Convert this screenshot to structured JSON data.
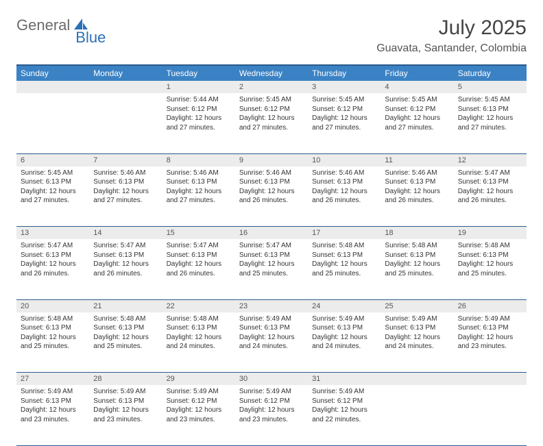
{
  "logo": {
    "general": "General",
    "blue": "Blue"
  },
  "title": "July 2025",
  "location": "Guavata, Santander, Colombia",
  "colors": {
    "header_bg": "#3b82c4",
    "header_border": "#2a5a8a",
    "daynum_bg": "#ececec",
    "text": "#333333",
    "logo_gray": "#6b6b6b",
    "logo_blue": "#2a71b8"
  },
  "weekdays": [
    "Sunday",
    "Monday",
    "Tuesday",
    "Wednesday",
    "Thursday",
    "Friday",
    "Saturday"
  ],
  "weeks": [
    [
      null,
      null,
      {
        "n": "1",
        "sr": "Sunrise: 5:44 AM",
        "ss": "Sunset: 6:12 PM",
        "d1": "Daylight: 12 hours",
        "d2": "and 27 minutes."
      },
      {
        "n": "2",
        "sr": "Sunrise: 5:45 AM",
        "ss": "Sunset: 6:12 PM",
        "d1": "Daylight: 12 hours",
        "d2": "and 27 minutes."
      },
      {
        "n": "3",
        "sr": "Sunrise: 5:45 AM",
        "ss": "Sunset: 6:12 PM",
        "d1": "Daylight: 12 hours",
        "d2": "and 27 minutes."
      },
      {
        "n": "4",
        "sr": "Sunrise: 5:45 AM",
        "ss": "Sunset: 6:12 PM",
        "d1": "Daylight: 12 hours",
        "d2": "and 27 minutes."
      },
      {
        "n": "5",
        "sr": "Sunrise: 5:45 AM",
        "ss": "Sunset: 6:13 PM",
        "d1": "Daylight: 12 hours",
        "d2": "and 27 minutes."
      }
    ],
    [
      {
        "n": "6",
        "sr": "Sunrise: 5:45 AM",
        "ss": "Sunset: 6:13 PM",
        "d1": "Daylight: 12 hours",
        "d2": "and 27 minutes."
      },
      {
        "n": "7",
        "sr": "Sunrise: 5:46 AM",
        "ss": "Sunset: 6:13 PM",
        "d1": "Daylight: 12 hours",
        "d2": "and 27 minutes."
      },
      {
        "n": "8",
        "sr": "Sunrise: 5:46 AM",
        "ss": "Sunset: 6:13 PM",
        "d1": "Daylight: 12 hours",
        "d2": "and 27 minutes."
      },
      {
        "n": "9",
        "sr": "Sunrise: 5:46 AM",
        "ss": "Sunset: 6:13 PM",
        "d1": "Daylight: 12 hours",
        "d2": "and 26 minutes."
      },
      {
        "n": "10",
        "sr": "Sunrise: 5:46 AM",
        "ss": "Sunset: 6:13 PM",
        "d1": "Daylight: 12 hours",
        "d2": "and 26 minutes."
      },
      {
        "n": "11",
        "sr": "Sunrise: 5:46 AM",
        "ss": "Sunset: 6:13 PM",
        "d1": "Daylight: 12 hours",
        "d2": "and 26 minutes."
      },
      {
        "n": "12",
        "sr": "Sunrise: 5:47 AM",
        "ss": "Sunset: 6:13 PM",
        "d1": "Daylight: 12 hours",
        "d2": "and 26 minutes."
      }
    ],
    [
      {
        "n": "13",
        "sr": "Sunrise: 5:47 AM",
        "ss": "Sunset: 6:13 PM",
        "d1": "Daylight: 12 hours",
        "d2": "and 26 minutes."
      },
      {
        "n": "14",
        "sr": "Sunrise: 5:47 AM",
        "ss": "Sunset: 6:13 PM",
        "d1": "Daylight: 12 hours",
        "d2": "and 26 minutes."
      },
      {
        "n": "15",
        "sr": "Sunrise: 5:47 AM",
        "ss": "Sunset: 6:13 PM",
        "d1": "Daylight: 12 hours",
        "d2": "and 26 minutes."
      },
      {
        "n": "16",
        "sr": "Sunrise: 5:47 AM",
        "ss": "Sunset: 6:13 PM",
        "d1": "Daylight: 12 hours",
        "d2": "and 25 minutes."
      },
      {
        "n": "17",
        "sr": "Sunrise: 5:48 AM",
        "ss": "Sunset: 6:13 PM",
        "d1": "Daylight: 12 hours",
        "d2": "and 25 minutes."
      },
      {
        "n": "18",
        "sr": "Sunrise: 5:48 AM",
        "ss": "Sunset: 6:13 PM",
        "d1": "Daylight: 12 hours",
        "d2": "and 25 minutes."
      },
      {
        "n": "19",
        "sr": "Sunrise: 5:48 AM",
        "ss": "Sunset: 6:13 PM",
        "d1": "Daylight: 12 hours",
        "d2": "and 25 minutes."
      }
    ],
    [
      {
        "n": "20",
        "sr": "Sunrise: 5:48 AM",
        "ss": "Sunset: 6:13 PM",
        "d1": "Daylight: 12 hours",
        "d2": "and 25 minutes."
      },
      {
        "n": "21",
        "sr": "Sunrise: 5:48 AM",
        "ss": "Sunset: 6:13 PM",
        "d1": "Daylight: 12 hours",
        "d2": "and 25 minutes."
      },
      {
        "n": "22",
        "sr": "Sunrise: 5:48 AM",
        "ss": "Sunset: 6:13 PM",
        "d1": "Daylight: 12 hours",
        "d2": "and 24 minutes."
      },
      {
        "n": "23",
        "sr": "Sunrise: 5:49 AM",
        "ss": "Sunset: 6:13 PM",
        "d1": "Daylight: 12 hours",
        "d2": "and 24 minutes."
      },
      {
        "n": "24",
        "sr": "Sunrise: 5:49 AM",
        "ss": "Sunset: 6:13 PM",
        "d1": "Daylight: 12 hours",
        "d2": "and 24 minutes."
      },
      {
        "n": "25",
        "sr": "Sunrise: 5:49 AM",
        "ss": "Sunset: 6:13 PM",
        "d1": "Daylight: 12 hours",
        "d2": "and 24 minutes."
      },
      {
        "n": "26",
        "sr": "Sunrise: 5:49 AM",
        "ss": "Sunset: 6:13 PM",
        "d1": "Daylight: 12 hours",
        "d2": "and 23 minutes."
      }
    ],
    [
      {
        "n": "27",
        "sr": "Sunrise: 5:49 AM",
        "ss": "Sunset: 6:13 PM",
        "d1": "Daylight: 12 hours",
        "d2": "and 23 minutes."
      },
      {
        "n": "28",
        "sr": "Sunrise: 5:49 AM",
        "ss": "Sunset: 6:13 PM",
        "d1": "Daylight: 12 hours",
        "d2": "and 23 minutes."
      },
      {
        "n": "29",
        "sr": "Sunrise: 5:49 AM",
        "ss": "Sunset: 6:12 PM",
        "d1": "Daylight: 12 hours",
        "d2": "and 23 minutes."
      },
      {
        "n": "30",
        "sr": "Sunrise: 5:49 AM",
        "ss": "Sunset: 6:12 PM",
        "d1": "Daylight: 12 hours",
        "d2": "and 23 minutes."
      },
      {
        "n": "31",
        "sr": "Sunrise: 5:49 AM",
        "ss": "Sunset: 6:12 PM",
        "d1": "Daylight: 12 hours",
        "d2": "and 22 minutes."
      },
      null,
      null
    ]
  ]
}
